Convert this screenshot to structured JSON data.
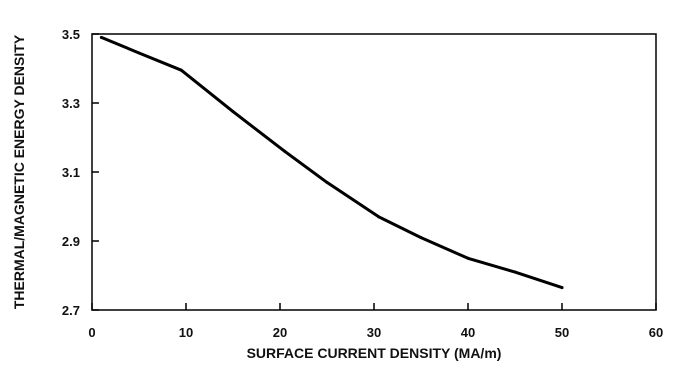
{
  "chart_data": {
    "type": "line",
    "title": "",
    "xlabel": "SURFACE CURRENT DENSITY (MA/m)",
    "ylabel": "THERMAL/MAGNETIC ENERGY DENSITY",
    "xlim": [
      0,
      60
    ],
    "ylim": [
      2.7,
      3.5
    ],
    "x_ticks": [
      "0",
      "10",
      "20",
      "30",
      "40",
      "50",
      "60"
    ],
    "y_ticks": [
      "2.7",
      "2.9",
      "3.1",
      "3.3",
      "3.5"
    ],
    "grid": false,
    "legend": "none",
    "series": [
      {
        "x": [
          1,
          5,
          9.5,
          15,
          20.5,
          25,
          30.5,
          35,
          40,
          45,
          50
        ],
        "y": [
          3.49,
          3.445,
          3.395,
          3.275,
          3.16,
          3.07,
          2.97,
          2.91,
          2.85,
          2.81,
          2.765
        ]
      }
    ],
    "line_color": "#000000"
  }
}
